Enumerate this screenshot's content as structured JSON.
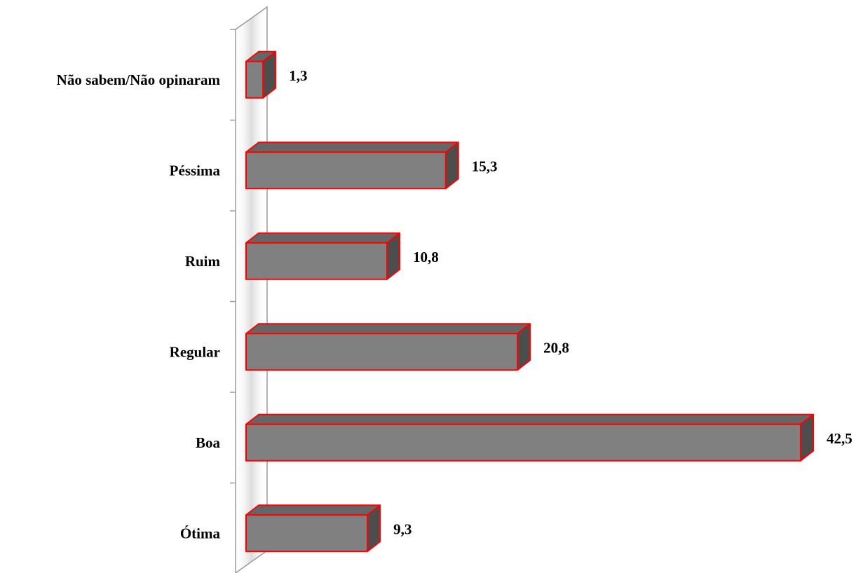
{
  "chart_data": {
    "type": "bar",
    "orientation": "horizontal",
    "style": "3d",
    "categories": [
      "Não sabem/Não opinaram",
      "Péssima",
      "Ruim",
      "Regular",
      "Boa",
      "Ótima"
    ],
    "values": [
      1.3,
      15.3,
      10.8,
      20.8,
      42.5,
      9.3
    ],
    "value_labels": [
      "1,3",
      "15,3",
      "10,8",
      "20,8",
      "42,5",
      "9,3"
    ],
    "title": "",
    "xlabel": "",
    "ylabel": "",
    "xlim": [
      0,
      42.5
    ],
    "grid": false,
    "legend": "none",
    "colors": {
      "bar_front": "#808080",
      "bar_top": "#666666",
      "bar_side": "#4d4d4d",
      "bar_outline": "#ff0000",
      "axis_wall": "#9a9a9a",
      "text": "#000000"
    }
  }
}
